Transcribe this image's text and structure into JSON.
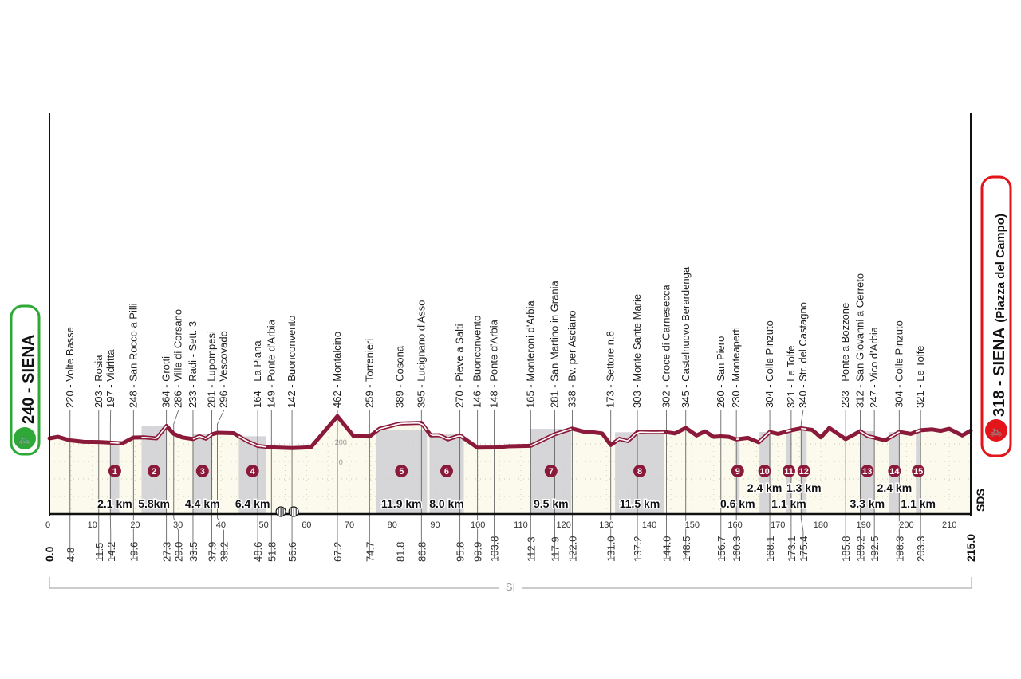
{
  "chart_data": {
    "type": "area",
    "xlim": [
      0,
      215
    ],
    "x_ticks": [
      0,
      10,
      20,
      30,
      40,
      50,
      60,
      70,
      80,
      90,
      100,
      110,
      120,
      130,
      140,
      150,
      160,
      170,
      180,
      190,
      200,
      210
    ],
    "y_ticks": [
      0,
      200
    ],
    "start": {
      "label": "240 - SIENA",
      "km": "0.0",
      "color": "#2ea836"
    },
    "finish": {
      "label": "318 - SIENA",
      "sub": "(Piazza del Campo)",
      "km": "215.0",
      "color": "#e3151a"
    },
    "profile_color": "#8b1a3a",
    "fill_color": "#fbfaed",
    "sector_color": "#cfcfd4",
    "waypoints": [
      {
        "km": "4.8",
        "alt": 220,
        "name": "220 - Volte Basse"
      },
      {
        "km": "11.5",
        "alt": 203,
        "name": "203 - Rosia"
      },
      {
        "km": "14.2",
        "alt": 197,
        "name": "197 - Vidritta"
      },
      {
        "km": "19.6",
        "alt": 248,
        "name": "248 - San Rocco a Pilli"
      },
      {
        "km": "27.3",
        "alt": 364,
        "name": "364 - Grotti"
      },
      {
        "km": "29.0",
        "alt": 286,
        "name": "286 - Ville di Corsano"
      },
      {
        "km": "33.5",
        "alt": 233,
        "name": "233 - Radi - Sett. 3"
      },
      {
        "km": "37.9",
        "alt": 281,
        "name": "281 - Lupompesi"
      },
      {
        "km": "39.2",
        "alt": 296,
        "name": "296 - Vescovado"
      },
      {
        "km": "48.6",
        "alt": 164,
        "name": "164 - La Piana"
      },
      {
        "km": "51.8",
        "alt": 149,
        "name": "149 - Ponte d'Arbia"
      },
      {
        "km": "56.6",
        "alt": 142,
        "name": "142 - Buonconvento"
      },
      {
        "km": "67.2",
        "alt": 462,
        "name": "462 - Montalcino"
      },
      {
        "km": "74.7",
        "alt": 259,
        "name": "259 - Torrenieri"
      },
      {
        "km": "81.8",
        "alt": 389,
        "name": "389 - Cosona"
      },
      {
        "km": "86.8",
        "alt": 395,
        "name": "395 - Lucignano d'Asso"
      },
      {
        "km": "95.8",
        "alt": 270,
        "name": "270 - Pieve a Salti"
      },
      {
        "km": "99.9",
        "alt": 146,
        "name": "146 - Buonconvento"
      },
      {
        "km": "103.8",
        "alt": 148,
        "name": "148 - Ponte d'Arbia"
      },
      {
        "km": "112.3",
        "alt": 165,
        "name": "165 - Monteroni d'Arbia"
      },
      {
        "km": "117.9",
        "alt": 281,
        "name": "281 - San Martino in Grania"
      },
      {
        "km": "122.0",
        "alt": 338,
        "name": "338 - Bv. per Asciano"
      },
      {
        "km": "131.0",
        "alt": 173,
        "name": "173 - Settore n.8"
      },
      {
        "km": "137.2",
        "alt": 303,
        "name": "303 - Monte Sante Marie"
      },
      {
        "km": "144.0",
        "alt": 302,
        "name": "302 - Croce di Carnesecca"
      },
      {
        "km": "148.5",
        "alt": 345,
        "name": "345 - Castelnuovo Berardenga"
      },
      {
        "km": "156.7",
        "alt": 260,
        "name": "260 - San Piero"
      },
      {
        "km": "160.3",
        "alt": 230,
        "name": "230 - Monteaperti"
      },
      {
        "km": "168.1",
        "alt": 304,
        "name": "304 - Colle Pinzuto"
      },
      {
        "km": "173.1",
        "alt": 321,
        "name": "321 - Le Tolfe"
      },
      {
        "km": "175.4",
        "alt": 340,
        "name": "340 - Str. del Castagno"
      },
      {
        "km": "185.8",
        "alt": 233,
        "name": "233 - Ponte a Bozzone"
      },
      {
        "km": "189.2",
        "alt": 312,
        "name": "312 - San Giovanni a Cerreto"
      },
      {
        "km": "192.5",
        "alt": 247,
        "name": "247 - Vico d'Arbia"
      },
      {
        "km": "198.3",
        "alt": 304,
        "name": "304 - Colle Pinzuto"
      },
      {
        "km": "203.3",
        "alt": 321,
        "name": "321 - Le Tolfe"
      }
    ],
    "profile": [
      [
        0,
        240
      ],
      [
        2,
        255
      ],
      [
        4.8,
        220
      ],
      [
        8,
        205
      ],
      [
        11.5,
        203
      ],
      [
        14.2,
        197
      ],
      [
        17,
        190
      ],
      [
        19.6,
        248
      ],
      [
        22,
        250
      ],
      [
        25,
        240
      ],
      [
        27.3,
        364
      ],
      [
        29,
        286
      ],
      [
        31,
        250
      ],
      [
        33.5,
        233
      ],
      [
        35,
        262
      ],
      [
        36.5,
        238
      ],
      [
        37.9,
        281
      ],
      [
        39.2,
        296
      ],
      [
        43,
        292
      ],
      [
        46,
        215
      ],
      [
        48.6,
        164
      ],
      [
        51.8,
        149
      ],
      [
        56.6,
        142
      ],
      [
        61,
        150
      ],
      [
        67.2,
        462
      ],
      [
        71,
        262
      ],
      [
        74.7,
        259
      ],
      [
        77,
        335
      ],
      [
        81.8,
        389
      ],
      [
        84,
        392
      ],
      [
        86.8,
        395
      ],
      [
        89,
        270
      ],
      [
        91,
        272
      ],
      [
        93,
        230
      ],
      [
        95.8,
        270
      ],
      [
        99.9,
        146
      ],
      [
        103.8,
        148
      ],
      [
        107,
        160
      ],
      [
        112.3,
        165
      ],
      [
        117.9,
        281
      ],
      [
        122,
        338
      ],
      [
        125,
        305
      ],
      [
        127,
        300
      ],
      [
        129,
        290
      ],
      [
        131,
        173
      ],
      [
        133,
        235
      ],
      [
        135,
        212
      ],
      [
        137.2,
        303
      ],
      [
        141,
        300
      ],
      [
        144,
        302
      ],
      [
        146,
        290
      ],
      [
        148.5,
        345
      ],
      [
        151,
        270
      ],
      [
        153,
        310
      ],
      [
        155,
        255
      ],
      [
        156.7,
        260
      ],
      [
        158.5,
        255
      ],
      [
        160.3,
        230
      ],
      [
        163,
        245
      ],
      [
        165.5,
        200
      ],
      [
        168.1,
        304
      ],
      [
        170,
        285
      ],
      [
        173.1,
        321
      ],
      [
        175.4,
        340
      ],
      [
        178,
        325
      ],
      [
        180,
        250
      ],
      [
        182,
        345
      ],
      [
        185.8,
        233
      ],
      [
        189.2,
        312
      ],
      [
        191,
        262
      ],
      [
        192.5,
        247
      ],
      [
        195,
        220
      ],
      [
        198.3,
        304
      ],
      [
        201,
        285
      ],
      [
        203.3,
        321
      ],
      [
        206,
        330
      ],
      [
        208,
        315
      ],
      [
        210,
        335
      ],
      [
        213,
        270
      ],
      [
        215,
        318
      ]
    ],
    "sectors": [
      {
        "num": "1",
        "from": 14.2,
        "to": 16.3,
        "length": "2.1 km"
      },
      {
        "num": "2",
        "from": 21.5,
        "to": 27.3,
        "length": "5.8km"
      },
      {
        "num": "3",
        "from": 33.5,
        "to": 37.9,
        "length": "4.4 km"
      },
      {
        "num": "4",
        "from": 44.2,
        "to": 50.6,
        "length": "6.4 km"
      },
      {
        "num": "5",
        "from": 76.2,
        "to": 88.1,
        "length": "11.9 km"
      },
      {
        "num": "6",
        "from": 88.7,
        "to": 96.7,
        "length": "8.0 km"
      },
      {
        "num": "7",
        "from": 112.3,
        "to": 121.8,
        "length": "9.5 km"
      },
      {
        "num": "8",
        "from": 132.0,
        "to": 143.5,
        "length": "11.5 km"
      },
      {
        "num": "9",
        "from": 160.3,
        "to": 160.9,
        "length": "0.6 km"
      },
      {
        "num": "10",
        "from": 165.7,
        "to": 168.1,
        "length": "2.4 km"
      },
      {
        "num": "11",
        "from": 172.0,
        "to": 173.1,
        "length": "1.1 km"
      },
      {
        "num": "12",
        "from": 175.4,
        "to": 176.7,
        "length": "1.3 km"
      },
      {
        "num": "13",
        "from": 189.2,
        "to": 192.5,
        "length": "3.3 km"
      },
      {
        "num": "14",
        "from": 196.0,
        "to": 198.4,
        "length": "2.4 km"
      },
      {
        "num": "15",
        "from": 202.2,
        "to": 203.3,
        "length": "1.1 km"
      }
    ],
    "footer_label": "SI",
    "logo_text": "SDS"
  }
}
